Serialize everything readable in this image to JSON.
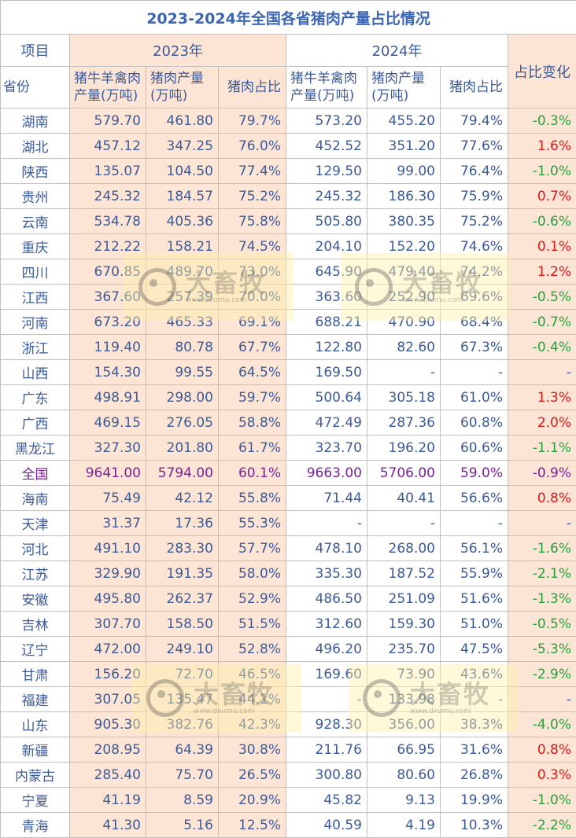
{
  "title": "2023-2024年全国各省猪肉产量占比情况",
  "headers": {
    "item": "项目",
    "province": "省份",
    "year2023": "2023年",
    "year2024": "2024年",
    "meat_prod": [
      "猪牛羊禽肉",
      "产量(万吨)"
    ],
    "pork_prod": [
      "猪肉产量",
      "(万吨)"
    ],
    "pork_share": "猪肉占比",
    "share_change": "占比变化"
  },
  "rows": [
    {
      "province": "湖南",
      "m23": "579.70",
      "p23": "461.80",
      "s23": "79.7%",
      "m24": "573.20",
      "p24": "455.20",
      "s24": "79.4%",
      "chg": "-0.3%",
      "dir": "down"
    },
    {
      "province": "湖北",
      "m23": "457.12",
      "p23": "347.25",
      "s23": "76.0%",
      "m24": "452.52",
      "p24": "351.20",
      "s24": "77.6%",
      "chg": "1.6%",
      "dir": "up"
    },
    {
      "province": "陕西",
      "m23": "135.07",
      "p23": "104.50",
      "s23": "77.4%",
      "m24": "129.50",
      "p24": "99.00",
      "s24": "76.4%",
      "chg": "-1.0%",
      "dir": "down"
    },
    {
      "province": "贵州",
      "m23": "245.32",
      "p23": "184.57",
      "s23": "75.2%",
      "m24": "245.32",
      "p24": "186.30",
      "s24": "75.9%",
      "chg": "0.7%",
      "dir": "up"
    },
    {
      "province": "云南",
      "m23": "534.78",
      "p23": "405.36",
      "s23": "75.8%",
      "m24": "505.80",
      "p24": "380.35",
      "s24": "75.2%",
      "chg": "-0.6%",
      "dir": "down"
    },
    {
      "province": "重庆",
      "m23": "212.22",
      "p23": "158.21",
      "s23": "74.5%",
      "m24": "204.10",
      "p24": "152.20",
      "s24": "74.6%",
      "chg": "0.1%",
      "dir": "up"
    },
    {
      "province": "四川",
      "m23": "670.85",
      "p23": "489.70",
      "s23": "73.0%",
      "m24": "645.90",
      "p24": "479.40",
      "s24": "74.2%",
      "chg": "1.2%",
      "dir": "up"
    },
    {
      "province": "江西",
      "m23": "367.60",
      "p23": "257.39",
      "s23": "70.0%",
      "m24": "363.60",
      "p24": "252.90",
      "s24": "69.6%",
      "chg": "-0.5%",
      "dir": "down"
    },
    {
      "province": "河南",
      "m23": "673.20",
      "p23": "465.33",
      "s23": "69.1%",
      "m24": "688.21",
      "p24": "470.90",
      "s24": "68.4%",
      "chg": "-0.7%",
      "dir": "down"
    },
    {
      "province": "浙江",
      "m23": "119.40",
      "p23": "80.78",
      "s23": "67.7%",
      "m24": "122.80",
      "p24": "82.60",
      "s24": "67.3%",
      "chg": "-0.4%",
      "dir": "down"
    },
    {
      "province": "山西",
      "m23": "154.30",
      "p23": "99.55",
      "s23": "64.5%",
      "m24": "169.50",
      "p24": "-",
      "s24": "-",
      "chg": "-",
      "dir": "none"
    },
    {
      "province": "广东",
      "m23": "498.91",
      "p23": "298.00",
      "s23": "59.7%",
      "m24": "500.64",
      "p24": "305.18",
      "s24": "61.0%",
      "chg": "1.3%",
      "dir": "up"
    },
    {
      "province": "广西",
      "m23": "469.15",
      "p23": "276.05",
      "s23": "58.8%",
      "m24": "472.49",
      "p24": "287.36",
      "s24": "60.8%",
      "chg": "2.0%",
      "dir": "up"
    },
    {
      "province": "黑龙江",
      "m23": "327.30",
      "p23": "201.80",
      "s23": "61.7%",
      "m24": "323.70",
      "p24": "196.20",
      "s24": "60.6%",
      "chg": "-1.1%",
      "dir": "down"
    },
    {
      "province": "全国",
      "m23": "9641.00",
      "p23": "5794.00",
      "s23": "60.1%",
      "m24": "9663.00",
      "p24": "5706.00",
      "s24": "59.0%",
      "chg": "-0.9%",
      "dir": "down",
      "national": true
    },
    {
      "province": "海南",
      "m23": "75.49",
      "p23": "42.12",
      "s23": "55.8%",
      "m24": "71.44",
      "p24": "40.41",
      "s24": "56.6%",
      "chg": "0.8%",
      "dir": "up"
    },
    {
      "province": "天津",
      "m23": "31.37",
      "p23": "17.36",
      "s23": "55.3%",
      "m24": "-",
      "p24": "-",
      "s24": "-",
      "chg": "-",
      "dir": "none"
    },
    {
      "province": "河北",
      "m23": "491.10",
      "p23": "283.30",
      "s23": "57.7%",
      "m24": "478.10",
      "p24": "268.00",
      "s24": "56.1%",
      "chg": "-1.6%",
      "dir": "down"
    },
    {
      "province": "江苏",
      "m23": "329.90",
      "p23": "191.35",
      "s23": "58.0%",
      "m24": "335.30",
      "p24": "187.52",
      "s24": "55.9%",
      "chg": "-2.1%",
      "dir": "down"
    },
    {
      "province": "安徽",
      "m23": "495.80",
      "p23": "262.37",
      "s23": "52.9%",
      "m24": "486.50",
      "p24": "251.09",
      "s24": "51.6%",
      "chg": "-1.3%",
      "dir": "down"
    },
    {
      "province": "吉林",
      "m23": "307.70",
      "p23": "158.50",
      "s23": "51.5%",
      "m24": "312.60",
      "p24": "159.30",
      "s24": "51.0%",
      "chg": "-0.5%",
      "dir": "down"
    },
    {
      "province": "辽宁",
      "m23": "472.00",
      "p23": "249.10",
      "s23": "52.8%",
      "m24": "496.20",
      "p24": "235.70",
      "s24": "47.5%",
      "chg": "-5.3%",
      "dir": "down"
    },
    {
      "province": "甘肃",
      "m23": "156.20",
      "p23": "72.70",
      "s23": "46.5%",
      "m24": "169.60",
      "p24": "73.90",
      "s24": "43.6%",
      "chg": "-2.9%",
      "dir": "down"
    },
    {
      "province": "福建",
      "m23": "307.05",
      "p23": "135.47",
      "s23": "44.1%",
      "m24": "-",
      "p24": "133.98",
      "s24": "-",
      "chg": "-",
      "dir": "none"
    },
    {
      "province": "山东",
      "m23": "905.30",
      "p23": "382.76",
      "s23": "42.3%",
      "m24": "928.30",
      "p24": "356.00",
      "s24": "38.3%",
      "chg": "-4.0%",
      "dir": "down"
    },
    {
      "province": "新疆",
      "m23": "208.95",
      "p23": "64.39",
      "s23": "30.8%",
      "m24": "211.76",
      "p24": "66.95",
      "s24": "31.6%",
      "chg": "0.8%",
      "dir": "up"
    },
    {
      "province": "内蒙古",
      "m23": "285.40",
      "p23": "75.70",
      "s23": "26.5%",
      "m24": "300.80",
      "p24": "80.60",
      "s24": "26.8%",
      "chg": "0.3%",
      "dir": "up"
    },
    {
      "province": "宁夏",
      "m23": "41.19",
      "p23": "8.59",
      "s23": "20.9%",
      "m24": "45.82",
      "p24": "9.13",
      "s24": "19.9%",
      "chg": "-1.0%",
      "dir": "down"
    },
    {
      "province": "青海",
      "m23": "41.30",
      "p23": "5.16",
      "s23": "12.5%",
      "m24": "40.59",
      "p24": "4.19",
      "s24": "10.3%",
      "chg": "-2.2%",
      "dir": "down"
    }
  ],
  "watermark": {
    "brand": "大畜牧",
    "site": "www.dxumu.com"
  },
  "colors": {
    "up": "#e01515",
    "down": "#1fa33a",
    "text": "#3b5a9a",
    "national": "#7a1f9a",
    "peach": "#fde5d6"
  }
}
